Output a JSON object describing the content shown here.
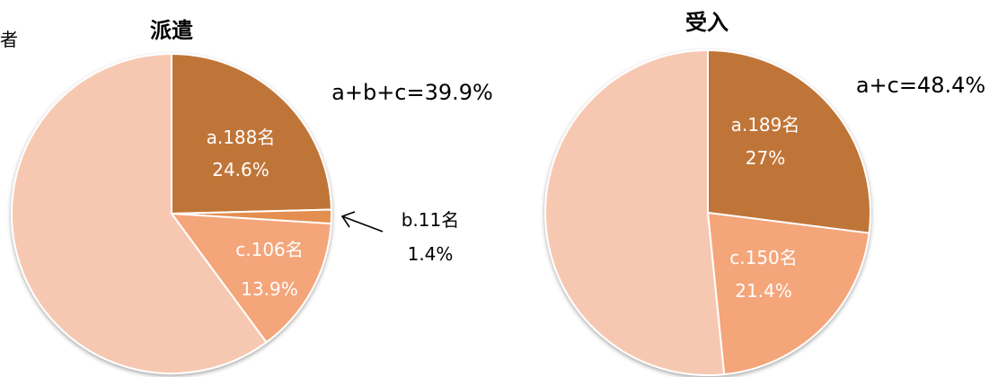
{
  "corner_text": "者",
  "chart_data": [
    {
      "type": "pie",
      "title": "派遣",
      "summary": "a+b+c=39.9%",
      "slices": [
        {
          "key": "a",
          "count_label": "a.188名",
          "pct_label": "24.6%",
          "value": 24.6,
          "color": "#c07537",
          "label_color": "#ffffff",
          "label_pos": "inside"
        },
        {
          "key": "b",
          "count_label": "b.11名",
          "pct_label": "1.4%",
          "value": 1.4,
          "color": "#e48f4f",
          "label_color": "#000000",
          "label_pos": "outside-arrow"
        },
        {
          "key": "c",
          "count_label": "c.106名",
          "pct_label": "13.9%",
          "value": 13.9,
          "color": "#f4a57a",
          "label_color": "#ffffff",
          "label_pos": "inside"
        },
        {
          "key": "rest",
          "count_label": "",
          "pct_label": "",
          "value": 60.1,
          "color": "#f7c8b1"
        }
      ]
    },
    {
      "type": "pie",
      "title": "受入",
      "summary": "a+c=48.4%",
      "slices": [
        {
          "key": "a",
          "count_label": "a.189名",
          "pct_label": "27%",
          "value": 27.0,
          "color": "#c07537",
          "label_color": "#ffffff",
          "label_pos": "inside"
        },
        {
          "key": "c",
          "count_label": "c.150名",
          "pct_label": "21.4%",
          "value": 21.4,
          "color": "#f4a57a",
          "label_color": "#ffffff",
          "label_pos": "inside"
        },
        {
          "key": "rest",
          "count_label": "",
          "pct_label": "",
          "value": 51.6,
          "color": "#f7c8b1"
        }
      ]
    }
  ]
}
